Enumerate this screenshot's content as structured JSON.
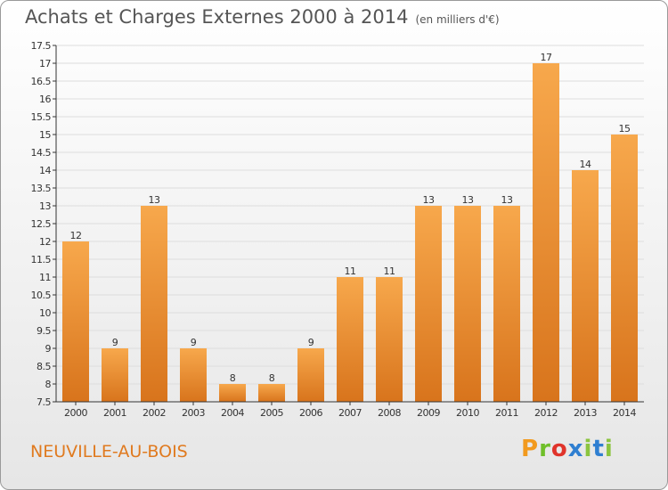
{
  "header": {
    "title": "Achats et Charges Externes 2000 à 2014",
    "subtitle": "(en milliers d'€)"
  },
  "footer": {
    "city": "NEUVILLE-AU-BOIS",
    "brand": "Proxiti"
  },
  "colors": {
    "bar_light": "#f7a84c",
    "bar_dark": "#d8741c",
    "grid": "#dddddd",
    "axis": "#333333",
    "city_text": "#e07a1f"
  },
  "chart_data": {
    "type": "bar",
    "title": "Achats et Charges Externes 2000 à 2014",
    "subtitle": "(en milliers d'€)",
    "categories": [
      "2000",
      "2001",
      "2002",
      "2003",
      "2004",
      "2005",
      "2006",
      "2007",
      "2008",
      "2009",
      "2010",
      "2011",
      "2012",
      "2013",
      "2014"
    ],
    "values": [
      12,
      9,
      13,
      9,
      8,
      8,
      9,
      11,
      11,
      13,
      13,
      13,
      17,
      14,
      15
    ],
    "data_labels": [
      "12",
      "9",
      "13",
      "9",
      "8",
      "8",
      "9",
      "11",
      "11",
      "13",
      "13",
      "13",
      "17",
      "14",
      "15"
    ],
    "yticks": [
      "7.5",
      "8",
      "8.5",
      "9",
      "9.5",
      "10",
      "10.5",
      "11",
      "11.5",
      "12",
      "12.5",
      "13",
      "13.5",
      "14",
      "14.5",
      "15",
      "15.5",
      "16",
      "16.5",
      "17",
      "17.5"
    ],
    "ylim": [
      7.5,
      17.5
    ],
    "xlabel": "",
    "ylabel": "",
    "grid": true,
    "legend": "none"
  }
}
